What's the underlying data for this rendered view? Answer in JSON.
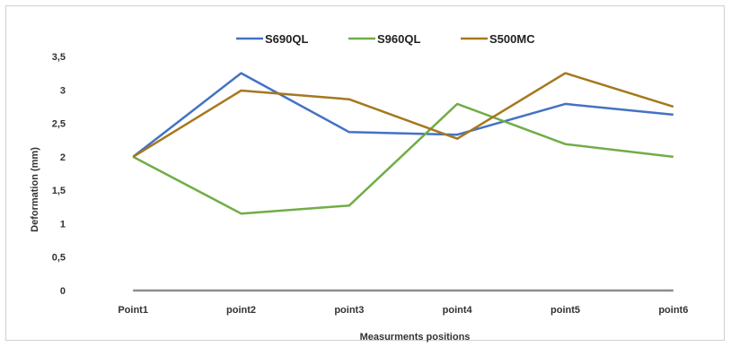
{
  "chart_data": {
    "type": "line",
    "categories": [
      "Point1",
      "point2",
      "point3",
      "point4",
      "point5",
      "point6"
    ],
    "series": [
      {
        "name": "S690QL",
        "color": "#4472c4",
        "values": [
          2.0,
          3.25,
          2.37,
          2.33,
          2.79,
          2.63
        ]
      },
      {
        "name": "S960QL",
        "color": "#70ad47",
        "values": [
          2.0,
          1.15,
          1.27,
          2.79,
          2.19,
          2.0
        ]
      },
      {
        "name": "S500MC",
        "color": "#a5781e",
        "values": [
          2.0,
          2.99,
          2.86,
          2.27,
          3.25,
          2.75
        ]
      }
    ],
    "yticks": [
      "0",
      "0,5",
      "1",
      "1,5",
      "2",
      "2,5",
      "3",
      "3,5"
    ],
    "ylim": [
      0,
      3.5
    ],
    "xlabel": "Measurments positions",
    "ylabel": "Deformation   (mm)",
    "legend_position": "top",
    "grid": false
  }
}
